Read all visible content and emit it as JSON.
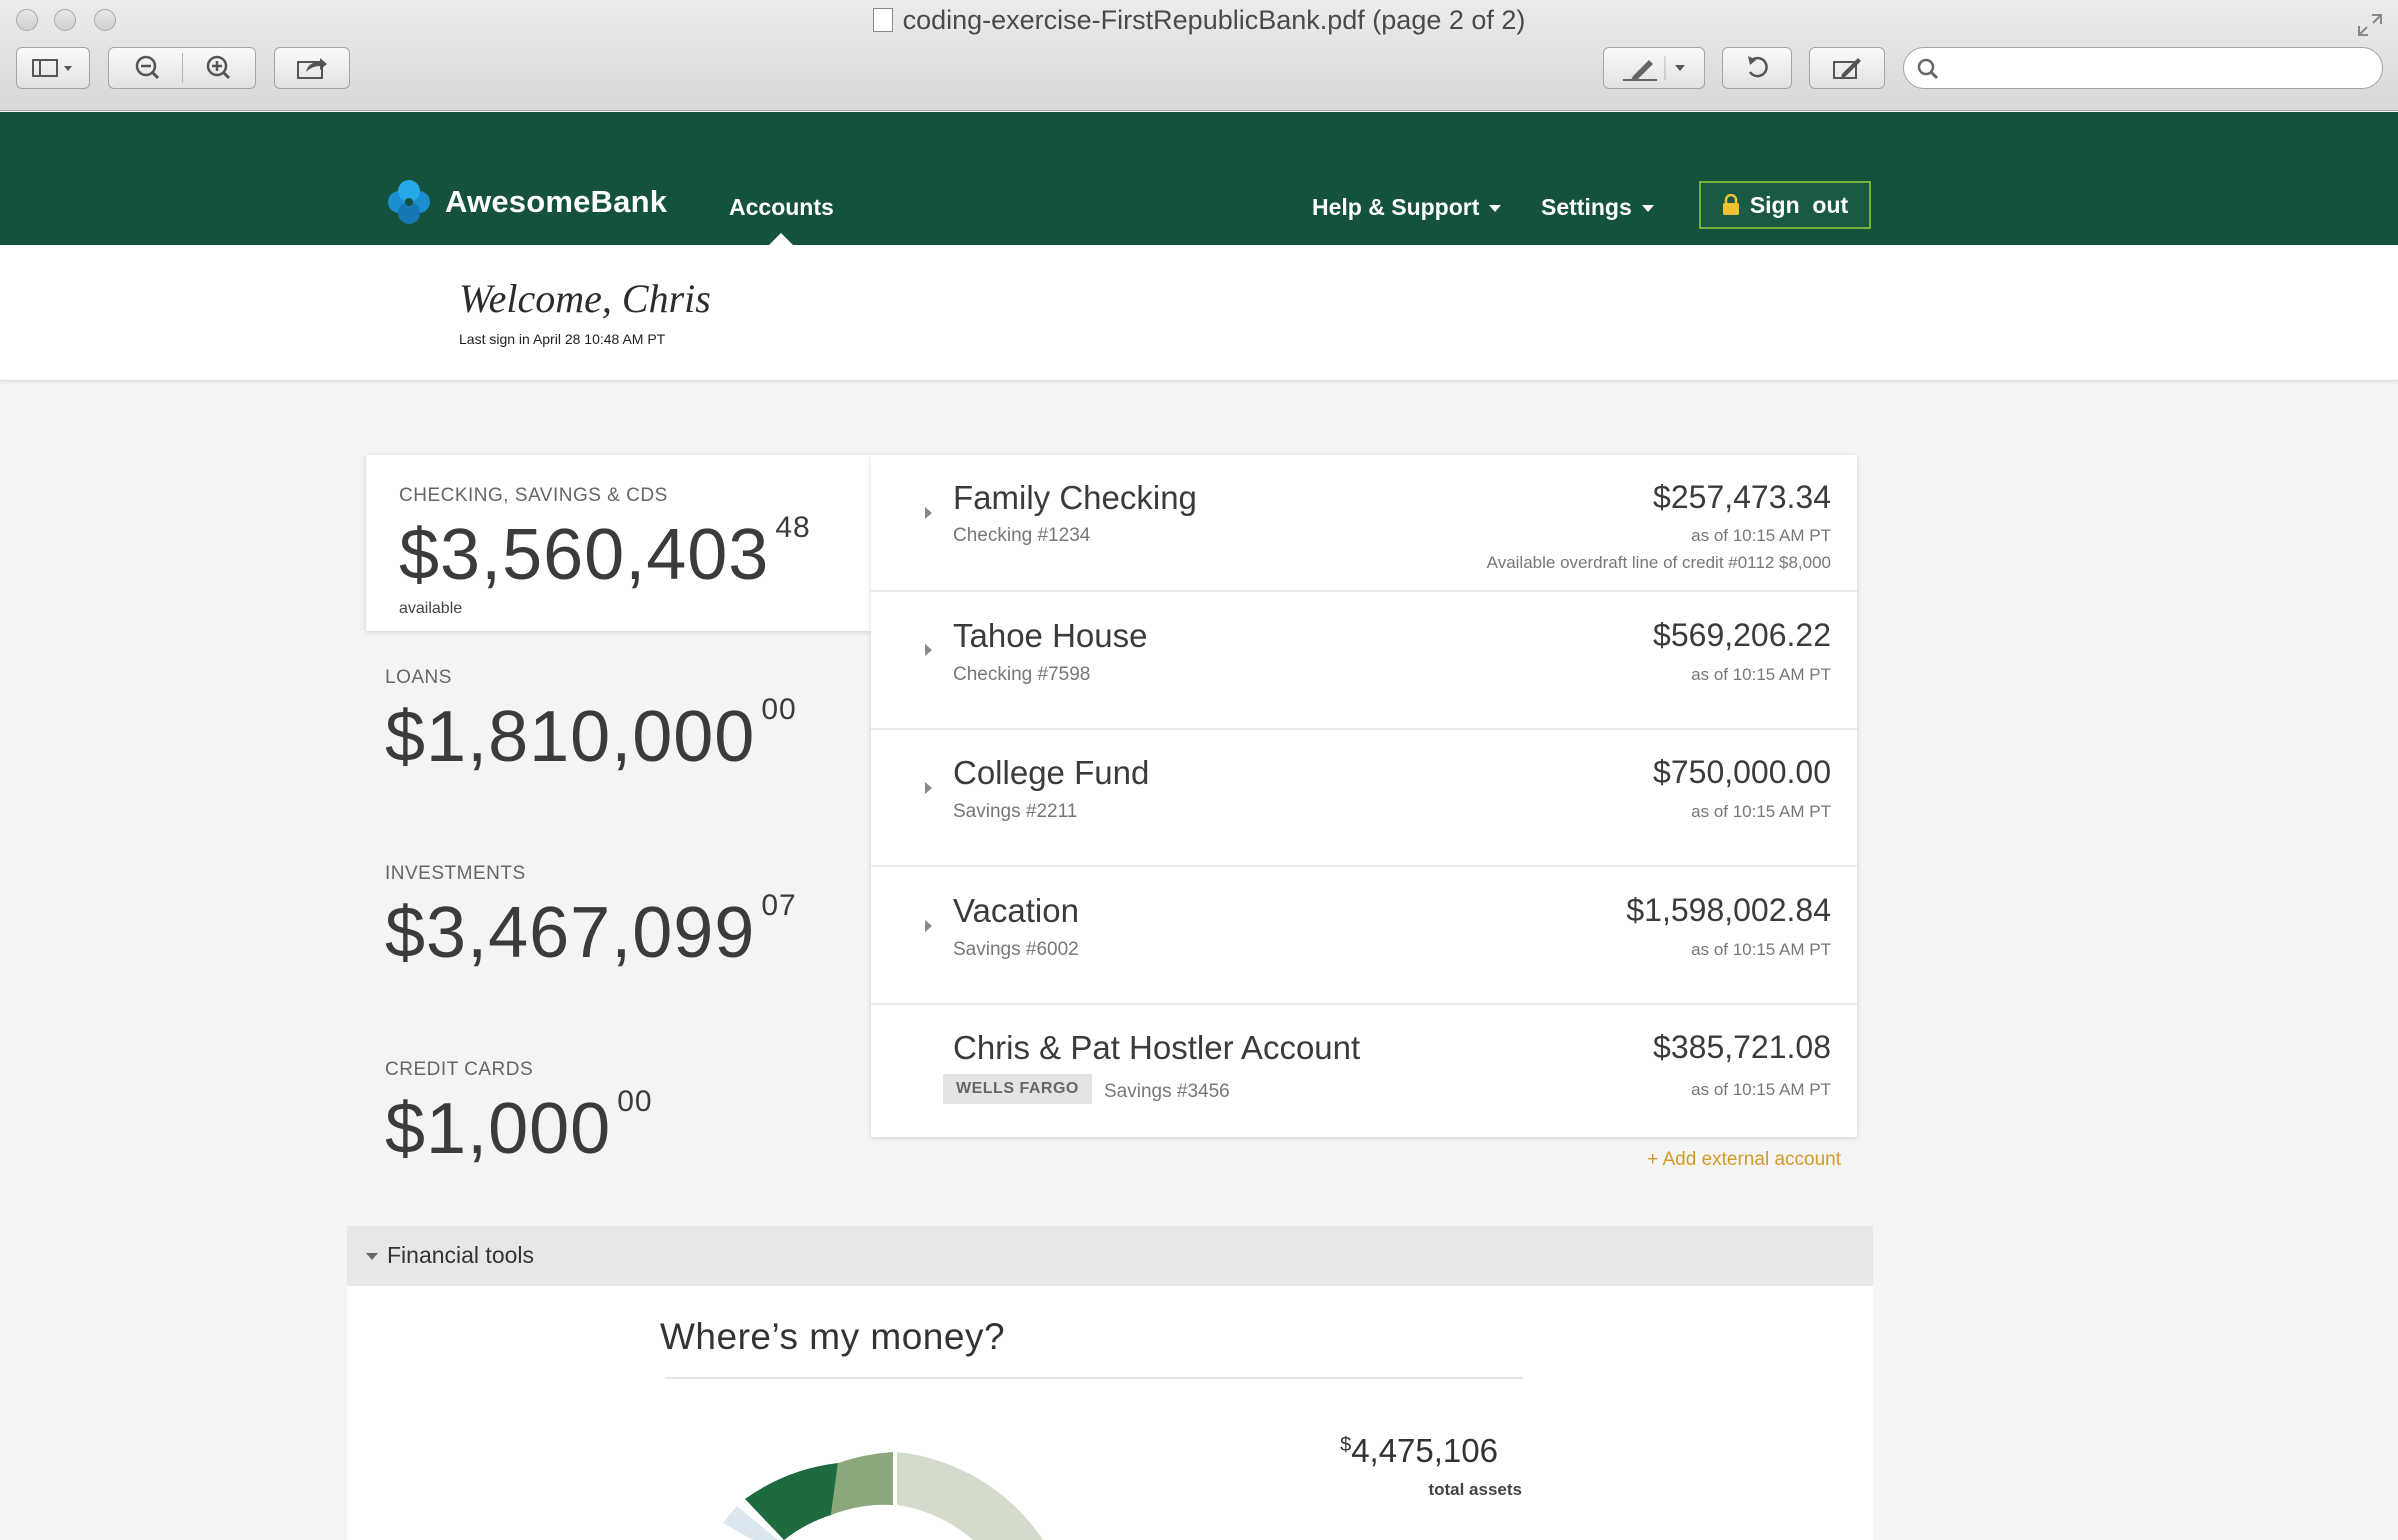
{
  "window": {
    "title": "coding-exercise-FirstRepublicBank.pdf (page 2 of 2)",
    "search_placeholder": ""
  },
  "brand": {
    "name": "AwesomeBank"
  },
  "nav": {
    "accounts": "Accounts",
    "help": "Help & Support",
    "settings": "Settings",
    "signout": "Sign  out"
  },
  "welcome": {
    "title": "Welcome, Chris",
    "last_signin": "Last sign in April 28 10:48 AM PT"
  },
  "summary": {
    "checking": {
      "label": "CHECKING, SAVINGS & CDS",
      "dollars": "$3,560,403",
      "cents": "48",
      "sublabel": "available"
    },
    "loans": {
      "label": "LOANS",
      "dollars": "$1,810,000",
      "cents": "00"
    },
    "investments": {
      "label": "INVESTMENTS",
      "dollars": "$3,467,099",
      "cents": "07"
    },
    "credit_cards": {
      "label": "CREDIT CARDS",
      "dollars": "$1,000",
      "cents": "00"
    }
  },
  "accounts": [
    {
      "name": "Family Checking",
      "number": "Checking #1234",
      "balance": "$257,473.34",
      "as_of": "as of 10:15 AM PT",
      "extra": "Available overdraft line of credit #0112 $8,000"
    },
    {
      "name": "Tahoe House",
      "number": "Checking #7598",
      "balance": "$569,206.22",
      "as_of": "as of 10:15 AM PT"
    },
    {
      "name": "College Fund",
      "number": "Savings #2211",
      "balance": "$750,000.00",
      "as_of": "as of 10:15 AM PT"
    },
    {
      "name": "Vacation",
      "number": "Savings #6002",
      "balance": "$1,598,002.84",
      "as_of": "as of 10:15 AM PT"
    },
    {
      "name": "Chris & Pat Hostler Account",
      "badge": "WELLS FARGO",
      "number": "Savings #3456",
      "balance": "$385,721.08",
      "as_of": "as of 10:15 AM PT"
    }
  ],
  "add_external": "+ Add external account",
  "financial_tools": {
    "header": "Financial tools",
    "title": "Where’s my money?",
    "total_currency": "$",
    "total_value": "4,475,106",
    "total_label": "total assets"
  },
  "colors": {
    "nav_green": "#14523c",
    "signout_border": "#78b13a",
    "link_gold": "#d39a24",
    "donut": [
      "#1e6b3f",
      "#8aa87a",
      "#d3dccb"
    ]
  }
}
